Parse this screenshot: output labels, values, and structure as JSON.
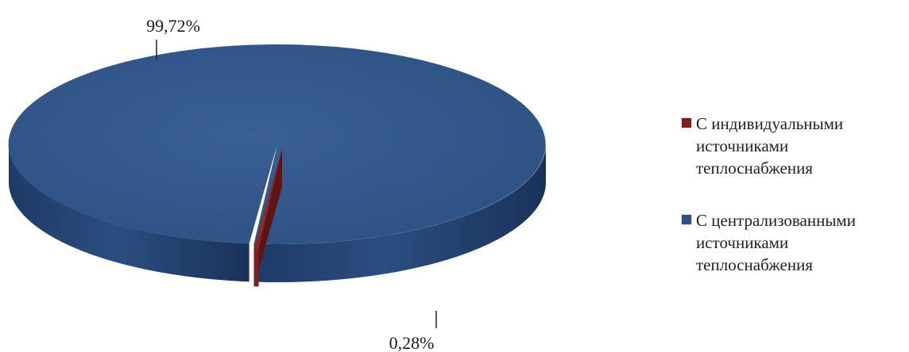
{
  "chart_data": {
    "type": "pie",
    "style": "3d",
    "title": "",
    "slices": [
      {
        "name": "С индивидуальными\nисточниками\nтеплоснабжения",
        "value": 0.28,
        "label": "0,28%",
        "color": "#7B2020"
      },
      {
        "name": "С централизованными\nисточниками\nтеплоснабжения",
        "value": 99.72,
        "label": "99,72%",
        "color": "#2F5080"
      }
    ],
    "legend_position": "right"
  }
}
